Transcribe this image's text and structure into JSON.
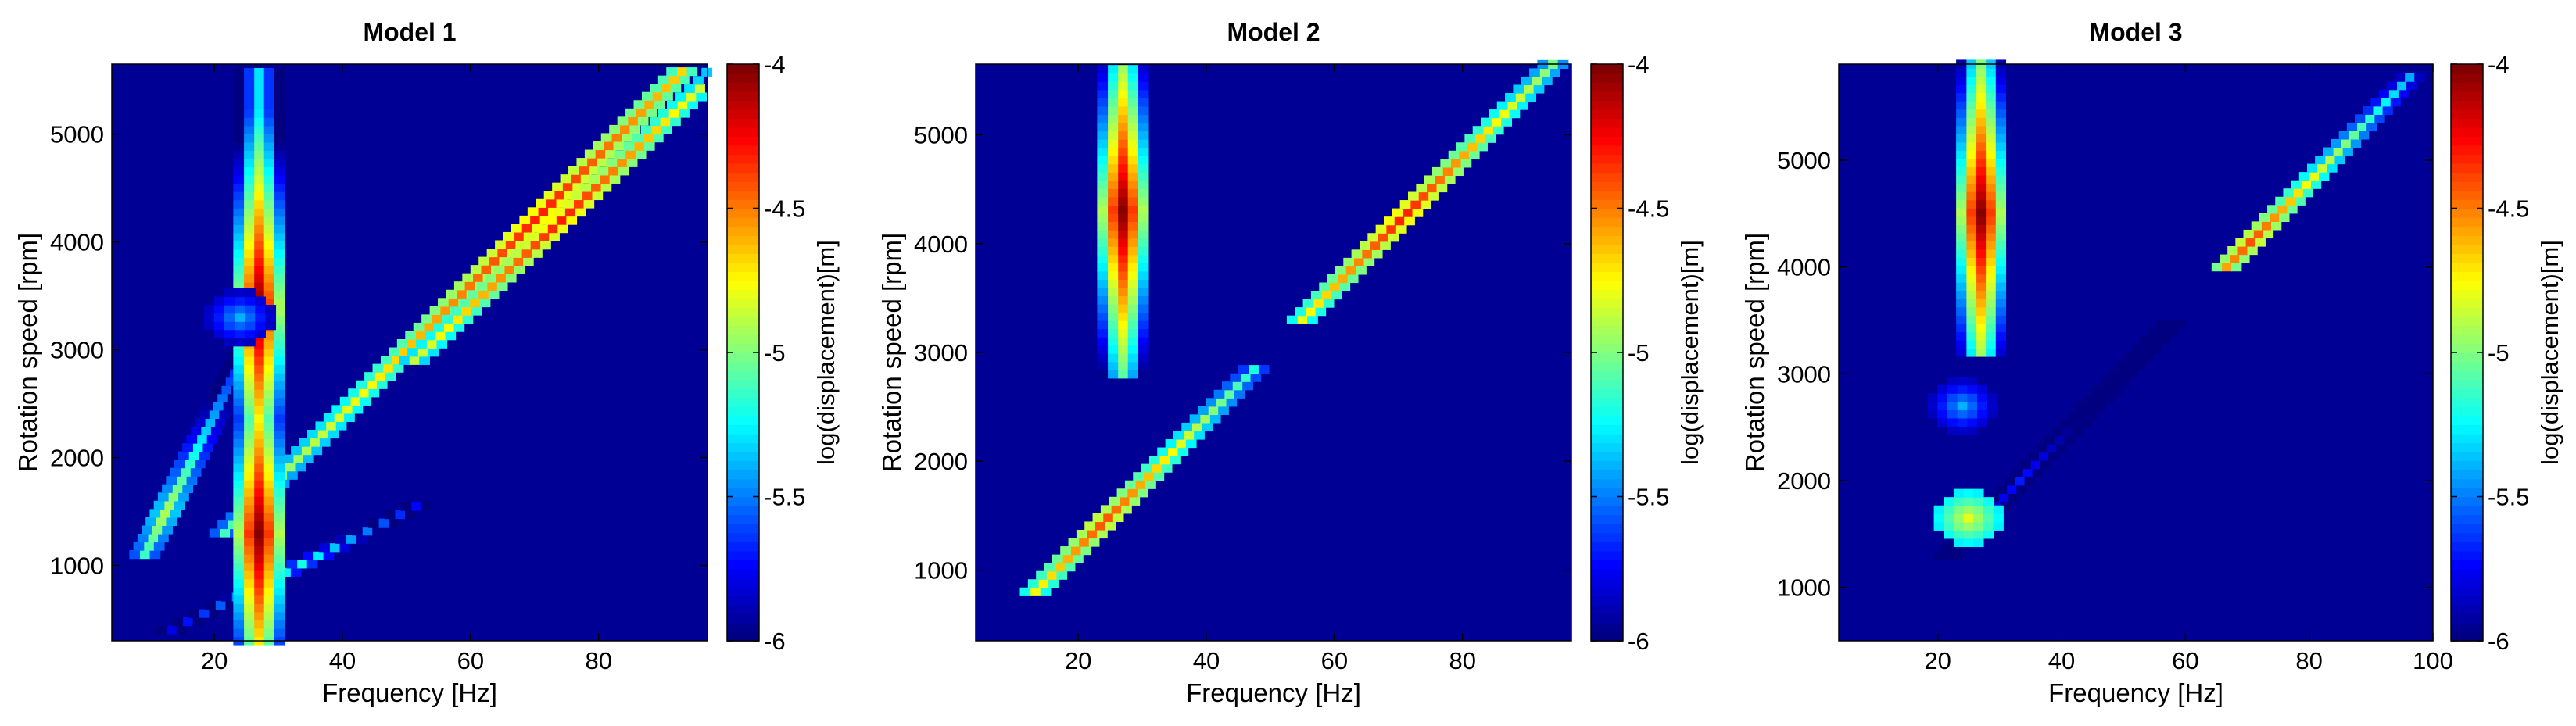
{
  "chart_data": [
    {
      "type": "heatmap",
      "title": "Model 1",
      "xlabel": "Frequency [Hz]",
      "ylabel": "Rotation speed [rpm]",
      "xlim": [
        4,
        97
      ],
      "ylim": [
        300,
        5650
      ],
      "xticks": [
        20,
        40,
        60,
        80
      ],
      "yticks": [
        1000,
        2000,
        3000,
        4000,
        5000
      ],
      "colorbar": {
        "label": "log(displacement)[m]",
        "range": [
          -6,
          -4
        ],
        "ticks": [
          -4,
          -4.5,
          -5,
          -5.5,
          -6
        ]
      },
      "features": [
        {
          "kind": "order_line",
          "order": 1,
          "rpm_range": [
            1300,
            5600
          ],
          "peak_rpm": 4250,
          "peak_value": -4.3
        },
        {
          "kind": "order_line",
          "order": 1,
          "rpm_range": [
            2900,
            5600
          ],
          "peak_rpm": 4200,
          "peak_value": -4.3,
          "freq_factor": 1.06
        },
        {
          "kind": "order_line",
          "order": 0.5,
          "rpm_range": [
            1100,
            3100
          ],
          "peak_rpm": 1500,
          "peak_value": -4.9
        },
        {
          "kind": "order_line",
          "order": 2,
          "rpm_range": [
            400,
            1600
          ],
          "peak_rpm": 1000,
          "peak_value": -5.2
        },
        {
          "kind": "resonance",
          "frequency": 27,
          "rpm_range": [
            300,
            5650
          ],
          "peak_rpms": [
            3400,
            1300
          ],
          "peak_value": -4.0
        },
        {
          "kind": "blob",
          "frequency": 24,
          "rpm": 3300,
          "value": -5.4
        }
      ]
    },
    {
      "type": "heatmap",
      "title": "Model 2",
      "xlabel": "Frequency [Hz]",
      "ylabel": "Rotation speed [rpm]",
      "xlim": [
        4,
        97
      ],
      "ylim": [
        350,
        5650
      ],
      "xticks": [
        20,
        40,
        60,
        80
      ],
      "yticks": [
        1000,
        2000,
        3000,
        4000,
        5000
      ],
      "colorbar": {
        "label": "log(displacement)[m]",
        "range": [
          -6,
          -4
        ],
        "ticks": [
          -4,
          -4.5,
          -5,
          -5.5,
          -6
        ]
      },
      "features": [
        {
          "kind": "order_line",
          "order": 1,
          "rpm_range": [
            3300,
            5650
          ],
          "peak_rpm": 4250,
          "peak_value": -4.3
        },
        {
          "kind": "order_line",
          "order": 1,
          "rpm_range": [
            800,
            2900
          ],
          "peak_rpm": 1450,
          "peak_value": -4.4
        },
        {
          "kind": "resonance",
          "frequency": 27,
          "rpm_range": [
            2800,
            5650
          ],
          "peak_rpms": [
            4300
          ],
          "peak_value": -4.0
        }
      ]
    },
    {
      "type": "heatmap",
      "title": "Model 3",
      "xlabel": "Frequency [Hz]",
      "ylabel": "Rotation speed [rpm]",
      "xlim": [
        4,
        100
      ],
      "ylim": [
        500,
        5900
      ],
      "xticks": [
        20,
        40,
        60,
        80,
        100
      ],
      "yticks": [
        1000,
        2000,
        3000,
        4000,
        5000
      ],
      "colorbar": {
        "label": "log(displacement)[m]",
        "range": [
          -6,
          -4
        ],
        "ticks": [
          -4,
          -4.5,
          -5,
          -5.5,
          -6
        ]
      },
      "features": [
        {
          "kind": "order_line",
          "order": 1,
          "rpm_range": [
            4000,
            5800
          ],
          "peak_rpm": 4250,
          "peak_value": -4.4
        },
        {
          "kind": "order_line",
          "order": 1,
          "rpm_range": [
            1300,
            3500
          ],
          "peak_rpm": 2000,
          "peak_value": -5.7
        },
        {
          "kind": "resonance",
          "frequency": 27,
          "rpm_range": [
            3200,
            5900
          ],
          "peak_rpms": [
            4500
          ],
          "peak_value": -4.0
        },
        {
          "kind": "blob",
          "frequency": 24,
          "rpm": 2700,
          "value": -5.4
        },
        {
          "kind": "blob",
          "frequency": 25,
          "rpm": 1650,
          "value": -4.8
        }
      ]
    }
  ]
}
